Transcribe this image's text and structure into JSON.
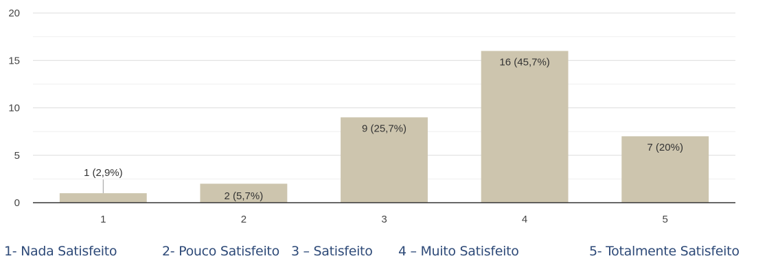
{
  "chart_data": {
    "type": "bar",
    "categories": [
      "1",
      "2",
      "3",
      "4",
      "5"
    ],
    "values": [
      1,
      2,
      9,
      16,
      7
    ],
    "data_labels": [
      "1 (2,9%)",
      "2 (5,7%)",
      "9 (25,7%)",
      "16 (45,7%)",
      "7 (20%)"
    ],
    "yticks": [
      0,
      5,
      10,
      15,
      20
    ],
    "ylim": [
      0,
      20
    ],
    "grid": true,
    "bar_color": "#cdc5ae",
    "title": "",
    "xlabel": "",
    "ylabel": ""
  },
  "legend": {
    "items": [
      "1-   Nada Satisfeito",
      "2- Pouco Satisfeito",
      "3 – Satisfeito",
      "4 – Muito Satisfeito",
      "5- Totalmente Satisfeito"
    ]
  }
}
